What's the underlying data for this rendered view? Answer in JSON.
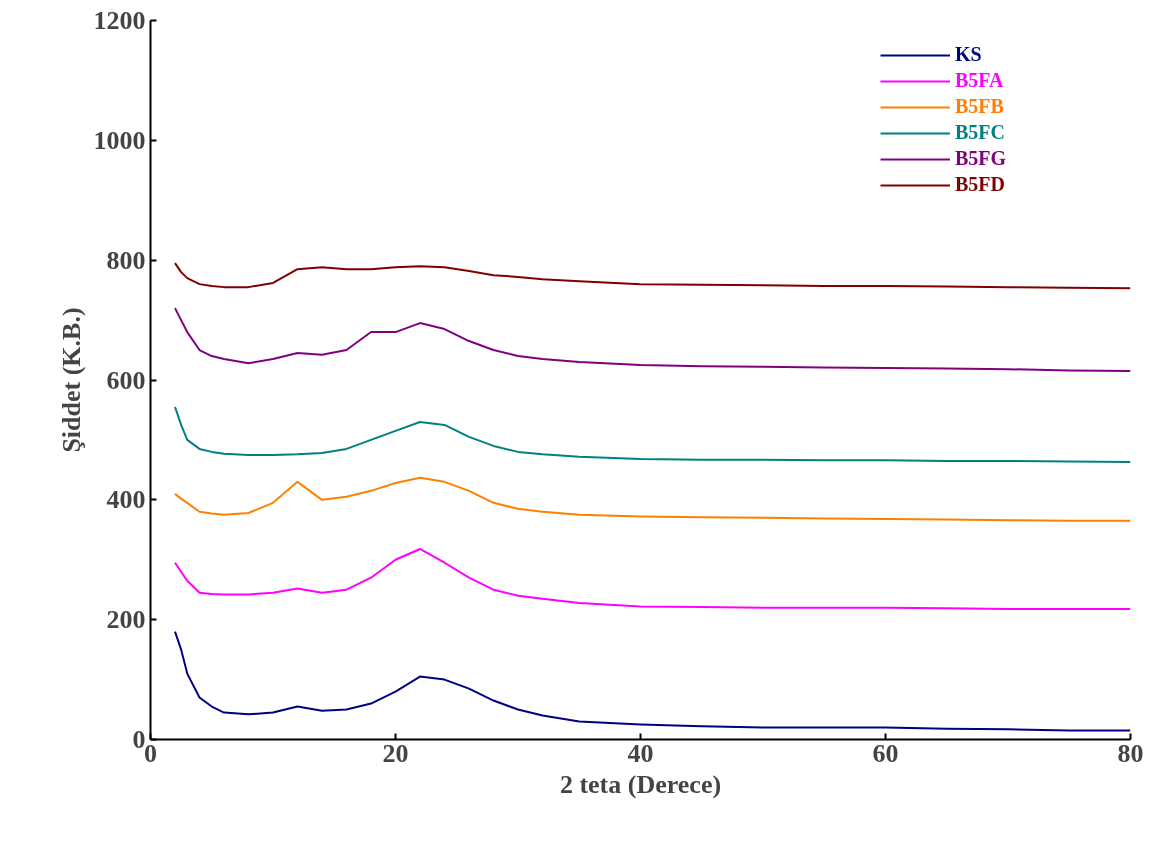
{
  "chart_data": {
    "type": "line",
    "xlabel": "2 teta (Derece)",
    "ylabel": "Şiddet (K.B.)",
    "xlim": [
      0,
      80
    ],
    "ylim": [
      0,
      1200
    ],
    "xticks": [
      0,
      20,
      40,
      60,
      80
    ],
    "yticks": [
      0,
      200,
      400,
      600,
      800,
      1000,
      1200
    ],
    "grid": false,
    "legend": "top right",
    "marker": "none",
    "line_style": "solid",
    "x": [
      2,
      2.5,
      3,
      4,
      5,
      6,
      8,
      10,
      12,
      14,
      16,
      18,
      20,
      22,
      24,
      26,
      28,
      30,
      32,
      35,
      40,
      45,
      50,
      55,
      60,
      65,
      70,
      75,
      80
    ],
    "series": [
      {
        "name": "KS",
        "color": "#000080",
        "values": [
          180,
          150,
          110,
          70,
          55,
          45,
          42,
          45,
          55,
          48,
          50,
          60,
          80,
          105,
          100,
          85,
          65,
          50,
          40,
          30,
          25,
          22,
          20,
          20,
          20,
          18,
          17,
          15,
          15
        ]
      },
      {
        "name": "B5FA",
        "color": "#ff00ff",
        "values": [
          295,
          280,
          265,
          245,
          243,
          242,
          242,
          245,
          252,
          245,
          250,
          270,
          300,
          318,
          295,
          270,
          250,
          240,
          235,
          228,
          222,
          221,
          220,
          220,
          220,
          219,
          218,
          218,
          218
        ]
      },
      {
        "name": "B5FB",
        "color": "#ff8000",
        "values": [
          410,
          402,
          395,
          380,
          377,
          375,
          378,
          395,
          430,
          400,
          405,
          415,
          428,
          437,
          430,
          415,
          395,
          385,
          380,
          375,
          372,
          371,
          370,
          369,
          368,
          367,
          366,
          365,
          365
        ]
      },
      {
        "name": "B5FC",
        "color": "#008080",
        "values": [
          555,
          525,
          500,
          485,
          480,
          477,
          475,
          475,
          476,
          478,
          485,
          500,
          515,
          530,
          525,
          505,
          490,
          480,
          476,
          472,
          468,
          467,
          467,
          466,
          466,
          465,
          465,
          464,
          463
        ]
      },
      {
        "name": "B5FG",
        "color": "#800080",
        "values": [
          720,
          700,
          680,
          650,
          640,
          635,
          628,
          635,
          645,
          642,
          650,
          680,
          680,
          695,
          685,
          665,
          650,
          640,
          635,
          630,
          625,
          623,
          622,
          621,
          620,
          619,
          618,
          616,
          615
        ]
      },
      {
        "name": "B5FD",
        "color": "#800000",
        "values": [
          795,
          780,
          770,
          760,
          757,
          755,
          755,
          762,
          785,
          788,
          785,
          785,
          788,
          790,
          788,
          782,
          775,
          772,
          768,
          765,
          760,
          759,
          758,
          757,
          757,
          756,
          755,
          754,
          753
        ]
      }
    ]
  }
}
